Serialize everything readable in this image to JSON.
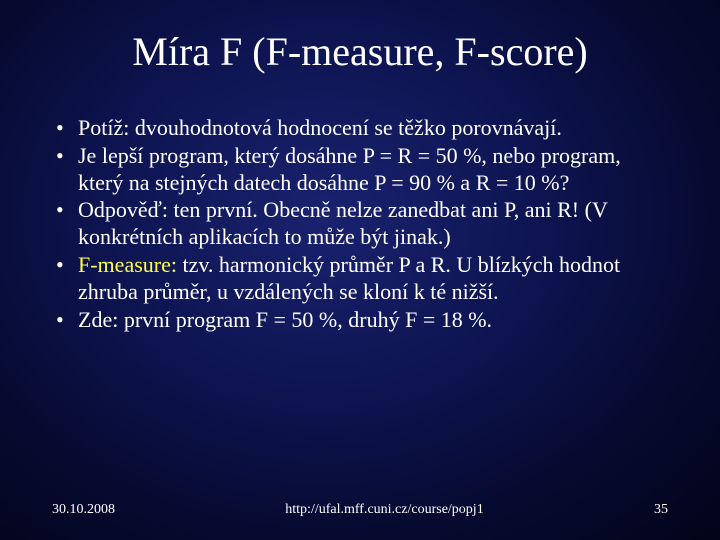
{
  "title": "Míra F (F-measure, F-score)",
  "bullets": [
    {
      "pre": "Potíž: dvouhodnotová hodnocení se těžko porovnávají.",
      "hl": "",
      "post": ""
    },
    {
      "pre": "Je lepší program, který dosáhne P = R = 50 %, nebo program, který na stejných datech dosáhne P = 90 % a R = 10 %?",
      "hl": "",
      "post": ""
    },
    {
      "pre": "Odpověď: ten první. Obecně nelze zanedbat ani P, ani R! (V konkrétních aplikacích to může být jinak.)",
      "hl": "",
      "post": ""
    },
    {
      "pre": "",
      "hl": "F-measure:",
      "post": " tzv. harmonický průměr P a R. U blízkých hodnot zhruba průměr, u vzdálených se kloní k té nižší."
    },
    {
      "pre": "Zde: první program F = 50 %, druhý F = 18 %.",
      "hl": "",
      "post": ""
    }
  ],
  "footer": {
    "date": "30.10.2008",
    "url": "http://ufal.mff.cuni.cz/course/popj1",
    "pagenum": "35"
  },
  "colors": {
    "bg_inner": "#1a2270",
    "bg_outer": "#020418",
    "text": "#ffffff",
    "highlight": "#ffff4a"
  }
}
